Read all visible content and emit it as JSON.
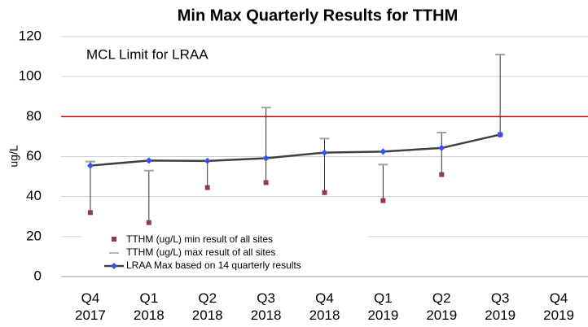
{
  "chart_data": {
    "type": "line",
    "title": "Min Max Quarterly Results for TTHM",
    "y_label": "ug/L",
    "categories": [
      "Q4\n2017",
      "Q1\n2018",
      "Q2\n2018",
      "Q3\n2018",
      "Q4\n2018",
      "Q1\n2019",
      "Q2\n2019",
      "Q3\n2019",
      "Q4\n2019"
    ],
    "series": [
      {
        "name": "TTHM (ug/L) min result of all sites",
        "color": "#8e3a5c",
        "values": [
          32,
          27,
          44.5,
          47,
          42,
          38,
          51,
          71,
          null
        ]
      },
      {
        "name": "TTHM (ug/L) max result of all sites",
        "color": "#a0a0a0",
        "values": [
          57.5,
          53,
          58,
          84.5,
          69,
          56,
          72,
          111,
          null
        ]
      },
      {
        "name": "LRAA Max based on 14 quarterly results",
        "color": "#404040",
        "marker_color": "#3355ee",
        "values": [
          55.5,
          58,
          57.8,
          59.2,
          62,
          62.5,
          64.3,
          71,
          null
        ]
      }
    ],
    "limit": {
      "label": "MCL Limit for LRAA",
      "value": 80,
      "color": "#cc0000"
    },
    "ylim": [
      0,
      120
    ],
    "yticks": [
      0,
      20,
      40,
      60,
      80,
      100,
      120
    ],
    "grid": true,
    "legend": "lower left"
  }
}
